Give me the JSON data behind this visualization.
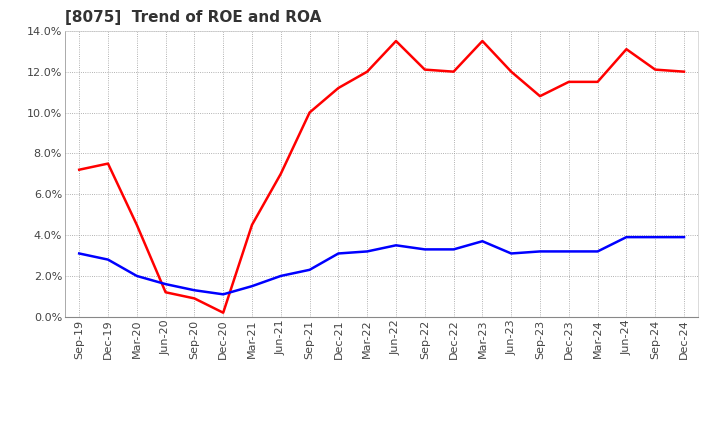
{
  "title": "[8075]  Trend of ROE and ROA",
  "x_labels": [
    "Sep-19",
    "Dec-19",
    "Mar-20",
    "Jun-20",
    "Sep-20",
    "Dec-20",
    "Mar-21",
    "Jun-21",
    "Sep-21",
    "Dec-21",
    "Mar-22",
    "Jun-22",
    "Sep-22",
    "Dec-22",
    "Mar-23",
    "Jun-23",
    "Sep-23",
    "Dec-23",
    "Mar-24",
    "Jun-24",
    "Sep-24",
    "Dec-24"
  ],
  "roe": [
    7.2,
    7.5,
    4.5,
    1.2,
    0.9,
    0.2,
    4.5,
    7.0,
    10.0,
    11.2,
    12.0,
    13.5,
    12.1,
    12.0,
    13.5,
    12.0,
    10.8,
    11.5,
    11.5,
    13.1,
    12.1,
    12.0
  ],
  "roa": [
    3.1,
    2.8,
    2.0,
    1.6,
    1.3,
    1.1,
    1.5,
    2.0,
    2.3,
    3.1,
    3.2,
    3.5,
    3.3,
    3.3,
    3.7,
    3.1,
    3.2,
    3.2,
    3.2,
    3.9,
    3.9,
    3.9
  ],
  "roe_color": "#ff0000",
  "roa_color": "#0000ff",
  "ylim": [
    0.0,
    14.0
  ],
  "yticks": [
    0.0,
    2.0,
    4.0,
    6.0,
    8.0,
    10.0,
    12.0,
    14.0
  ],
  "background_color": "#ffffff",
  "plot_bg_color": "#ffffff",
  "grid_color": "#999999",
  "title_fontsize": 11,
  "axis_label_fontsize": 8,
  "legend_fontsize": 9,
  "line_width": 1.8
}
